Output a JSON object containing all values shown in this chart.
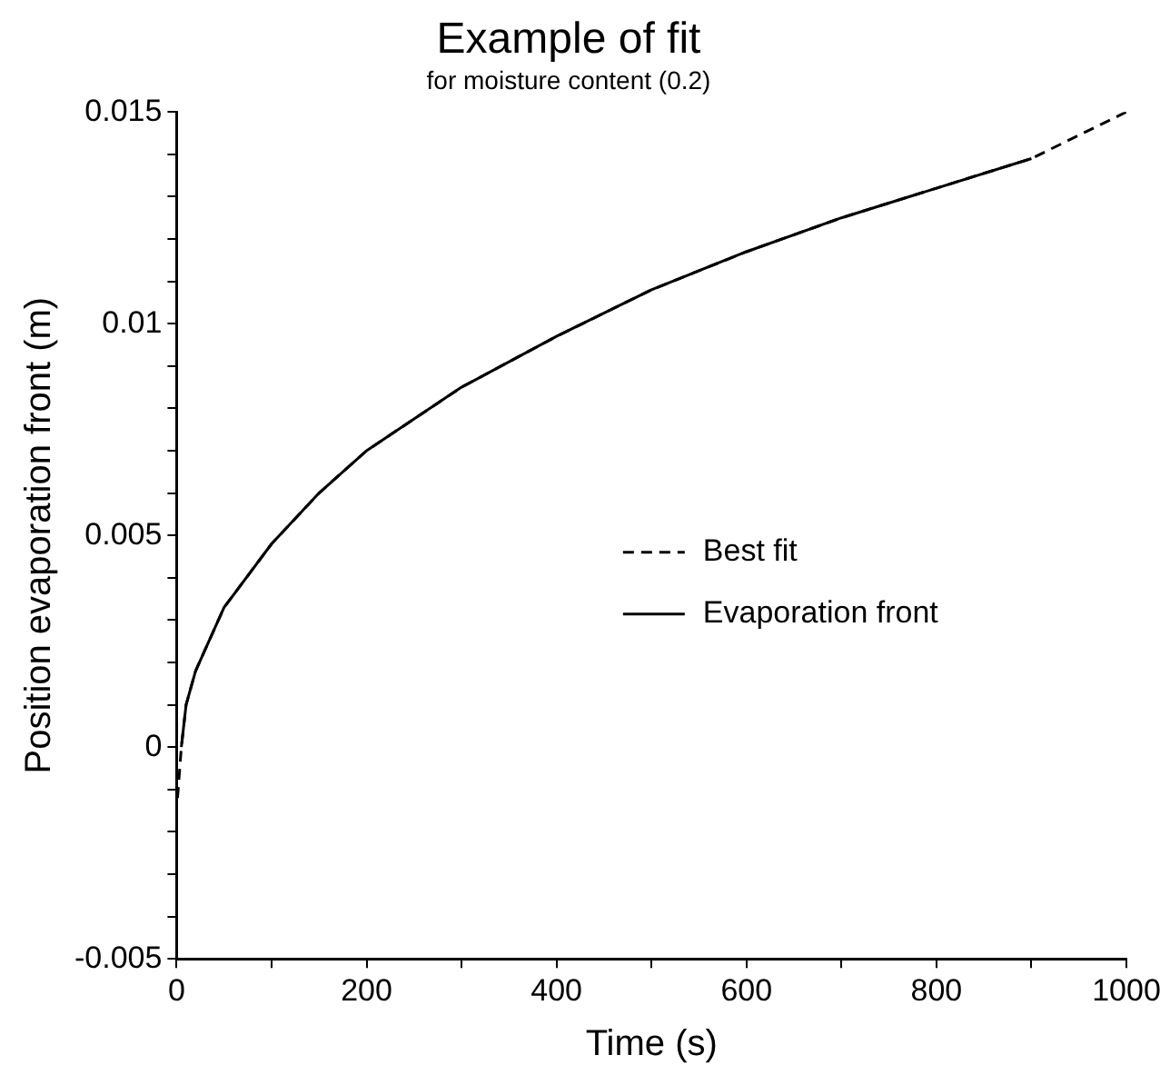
{
  "chart_data": {
    "type": "line",
    "title": "Example of fit",
    "subtitle": "for moisture content (0.2)",
    "xlabel": "Time (s)",
    "ylabel": "Position evaporation front (m)",
    "xlim": [
      0,
      1000
    ],
    "ylim": [
      -0.005,
      0.015
    ],
    "xticks": [
      0,
      {
        "value": 100,
        "label": null
      },
      200,
      {
        "value": 300,
        "label": null
      },
      400,
      {
        "value": 500,
        "label": null
      },
      600,
      {
        "value": 700,
        "label": null
      },
      800,
      {
        "value": 900,
        "label": null
      },
      1000
    ],
    "yticks": [
      -0.005,
      {
        "value": -0.004,
        "label": null
      },
      {
        "value": -0.003,
        "label": null
      },
      {
        "value": -0.002,
        "label": null
      },
      {
        "value": -0.001,
        "label": null
      },
      0,
      {
        "value": 0.001,
        "label": null
      },
      {
        "value": 0.002,
        "label": null
      },
      {
        "value": 0.003,
        "label": null
      },
      {
        "value": 0.004,
        "label": null
      },
      0.005,
      {
        "value": 0.006,
        "label": null
      },
      {
        "value": 0.007,
        "label": null
      },
      {
        "value": 0.008,
        "label": null
      },
      {
        "value": 0.009,
        "label": null
      },
      0.01,
      {
        "value": 0.011,
        "label": null
      },
      {
        "value": 0.012,
        "label": null
      },
      {
        "value": 0.013,
        "label": null
      },
      {
        "value": 0.014,
        "label": null
      },
      0.015
    ],
    "grid": false,
    "legend": "right",
    "marker": "none",
    "series": [
      {
        "name": "Best fit",
        "color": "#000000",
        "line_style": "dashed",
        "x": [
          1,
          5,
          10,
          20,
          50,
          100,
          150,
          200,
          300,
          400,
          500,
          600,
          700,
          800,
          900,
          1000
        ],
        "values": [
          -0.0012,
          0.0,
          0.001,
          0.0018,
          0.0033,
          0.0048,
          0.006,
          0.007,
          0.0085,
          0.0097,
          0.0108,
          0.0117,
          0.0125,
          0.0132,
          0.0139,
          0.015
        ]
      },
      {
        "name": "Evaporation front",
        "color": "#000000",
        "line_style": "solid",
        "x": [
          5,
          10,
          20,
          50,
          100,
          150,
          200,
          300,
          400,
          500,
          600,
          700,
          800,
          900
        ],
        "values": [
          0.0,
          0.001,
          0.0018,
          0.0033,
          0.0048,
          0.006,
          0.007,
          0.0085,
          0.0097,
          0.0108,
          0.0117,
          0.0125,
          0.0132,
          0.0139
        ]
      }
    ]
  }
}
